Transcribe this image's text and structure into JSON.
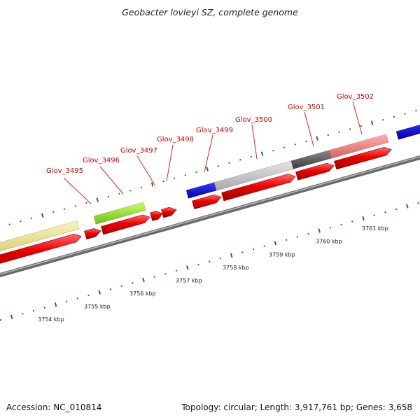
{
  "title": "Geobacter lovleyi SZ, complete genome",
  "footer": {
    "accession": "Accession: NC_010814",
    "summary": "Topology: circular; Length: 3,917,761 bp; Genes: 3,658"
  },
  "colors": {
    "cds": "#ee0000",
    "label": "#cc0000",
    "tick": "#1e7a1e",
    "backbone": "#8a8a8a"
  },
  "gene_labels": [
    "Glov_3495",
    "Glov_3496",
    "Glov_3497",
    "Glov_3498",
    "Glov_3499",
    "Glov_3500",
    "Glov_3501",
    "Glov_3502"
  ],
  "scale_labels": [
    "3754 kbp",
    "3755 kbp",
    "3756 kbp",
    "3757 kbp",
    "3758 kbp",
    "3759 kbp",
    "3760 kbp",
    "3761 kbp"
  ],
  "feature_tracks": [
    {
      "name": "cog-khaki",
      "color": "#f0e68c"
    },
    {
      "name": "cog-green",
      "color": "#99ee22"
    },
    {
      "name": "cog-blue",
      "color": "#0000dd"
    },
    {
      "name": "cog-lightgray",
      "color": "#c8c8c8"
    },
    {
      "name": "cog-darkgray",
      "color": "#5a5a5a"
    },
    {
      "name": "cog-pink",
      "color": "#f08080"
    }
  ]
}
